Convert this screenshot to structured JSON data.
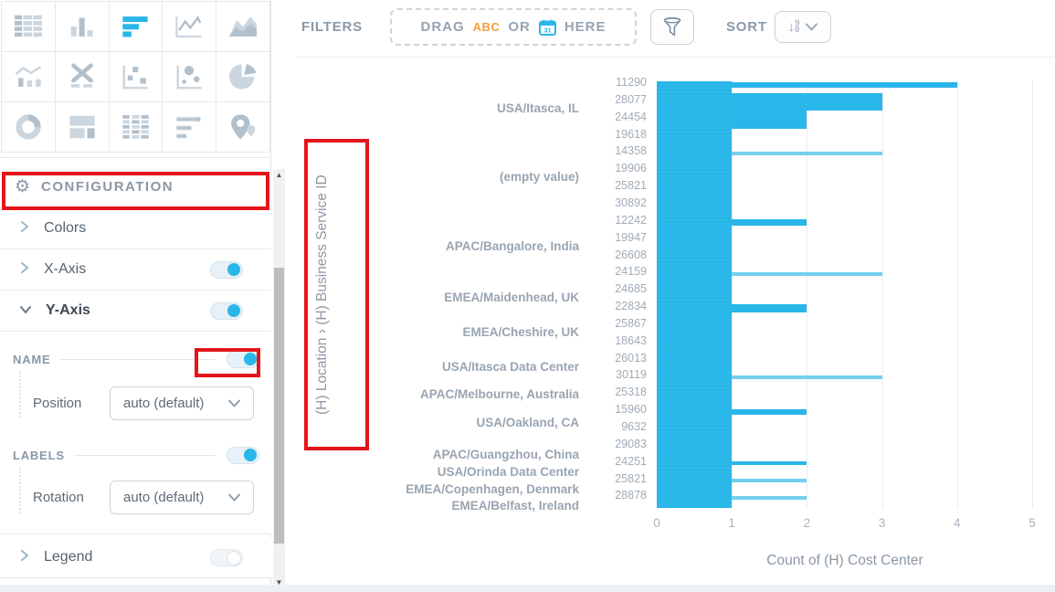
{
  "left_panel": {
    "chart_types": [
      {
        "name": "table-chart-icon",
        "selected": false
      },
      {
        "name": "column-chart-icon",
        "selected": false
      },
      {
        "name": "horizontal-bar-chart-icon",
        "selected": true
      },
      {
        "name": "line-chart-icon",
        "selected": false
      },
      {
        "name": "area-chart-icon",
        "selected": false
      },
      {
        "name": "combo-chart-icon",
        "selected": false
      },
      {
        "name": "x-axis-chart-icon",
        "selected": false
      },
      {
        "name": "scatter-chart-icon",
        "selected": false
      },
      {
        "name": "bubble-chart-icon",
        "selected": false
      },
      {
        "name": "pie-chart-icon",
        "selected": false
      },
      {
        "name": "donut-chart-icon",
        "selected": false
      },
      {
        "name": "layout-chart-icon",
        "selected": false
      },
      {
        "name": "pivot-table-icon",
        "selected": false
      },
      {
        "name": "bullet-chart-icon",
        "selected": false
      },
      {
        "name": "map-chart-icon",
        "selected": false
      }
    ],
    "configuration": {
      "title": "CONFIGURATION",
      "sections": [
        {
          "label": "Colors",
          "expanded": false,
          "toggle": null
        },
        {
          "label": "X-Axis",
          "expanded": false,
          "toggle": "on"
        },
        {
          "label": "Y-Axis",
          "expanded": true,
          "toggle": "on"
        }
      ],
      "y_axis_settings": {
        "name_label": "NAME",
        "name_toggle": "on",
        "position_label": "Position",
        "position_value": "auto (default)",
        "labels_label": "LABELS",
        "labels_toggle": "on",
        "rotation_label": "Rotation",
        "rotation_value": "auto (default)"
      },
      "legend": {
        "label": "Legend",
        "toggle": "off"
      }
    }
  },
  "toolbar": {
    "filters_label": "FILTERS",
    "dropzone": {
      "drag": "DRAG",
      "abc": "ABC",
      "or": "OR",
      "calendar_day": "31",
      "here": "HERE"
    },
    "sort_label": "SORT",
    "sort_icon": {
      "arrow": "↓",
      "digit_top": "9",
      "digit_bottom": "0"
    }
  },
  "colors": {
    "accent_blue": "#29b6e8",
    "light_bar_blue": "#72d0ee",
    "annotation_red": "#e4151a",
    "abc_orange": "#f0a03a"
  },
  "chart_data": {
    "type": "bar",
    "orientation": "horizontal",
    "xlabel": "Count of (H) Cost Center",
    "ylabel": "(H) Location › (H) Business Service ID",
    "xlim": [
      0,
      5
    ],
    "xticks": [
      "0",
      "1",
      "2",
      "3",
      "4",
      "5"
    ],
    "grid": true,
    "legend": false,
    "rows": [
      {
        "id": "11290",
        "value": 4
      },
      {
        "id": "28077",
        "value": 3
      },
      {
        "id": "24454",
        "value": 2
      },
      {
        "id": "19618",
        "value": 1
      },
      {
        "id": "14358",
        "value": 3
      },
      {
        "id": "19906",
        "value": 1
      },
      {
        "id": "25821",
        "value": 1
      },
      {
        "id": "30892",
        "value": 1
      },
      {
        "id": "12242",
        "value": 2
      },
      {
        "id": "19947",
        "value": 1
      },
      {
        "id": "26608",
        "value": 1
      },
      {
        "id": "24159",
        "value": 3
      },
      {
        "id": "24685",
        "value": 1
      },
      {
        "id": "22834",
        "value": 2
      },
      {
        "id": "25867",
        "value": 1
      },
      {
        "id": "18643",
        "value": 1
      },
      {
        "id": "26013",
        "value": 1
      },
      {
        "id": "30119",
        "value": 3
      },
      {
        "id": "25318",
        "value": 1
      },
      {
        "id": "15960",
        "value": 2
      },
      {
        "id": "9632",
        "value": 1
      },
      {
        "id": "29083",
        "value": 1
      },
      {
        "id": "24251",
        "value": 2
      },
      {
        "id": "25821",
        "value": 2
      },
      {
        "id": "28878",
        "value": 2
      }
    ],
    "groups": [
      {
        "label": "USA/Itasca, IL",
        "start_row": 1,
        "end_row": 4
      },
      {
        "label": "(empty value)",
        "start_row": 5,
        "end_row": 8
      },
      {
        "label": "APAC/Bangalore, India",
        "start_row": 9,
        "end_row": 12
      },
      {
        "label": "EMEA/Maidenhead, UK",
        "start_row": 13,
        "end_row": 14
      },
      {
        "label": "EMEA/Cheshire, UK",
        "start_row": 15,
        "end_row": 16
      },
      {
        "label": "USA/Itasca Data Center",
        "start_row": 17,
        "end_row": 18
      },
      {
        "label": "APAC/Melbourne, Australia",
        "start_row": 19,
        "end_row": 19
      },
      {
        "label": "USA/Oakland, CA",
        "start_row": 20,
        "end_row": 21
      },
      {
        "label": "APAC/Guangzhou, China",
        "start_row": 22,
        "end_row": 22
      },
      {
        "label": "USA/Orinda Data Center",
        "start_row": 23,
        "end_row": 23
      },
      {
        "label": "EMEA/Copenhagen, Denmark",
        "start_row": 24,
        "end_row": 24
      },
      {
        "label": "EMEA/Belfast, Ireland",
        "start_row": 25,
        "end_row": 25
      }
    ]
  }
}
